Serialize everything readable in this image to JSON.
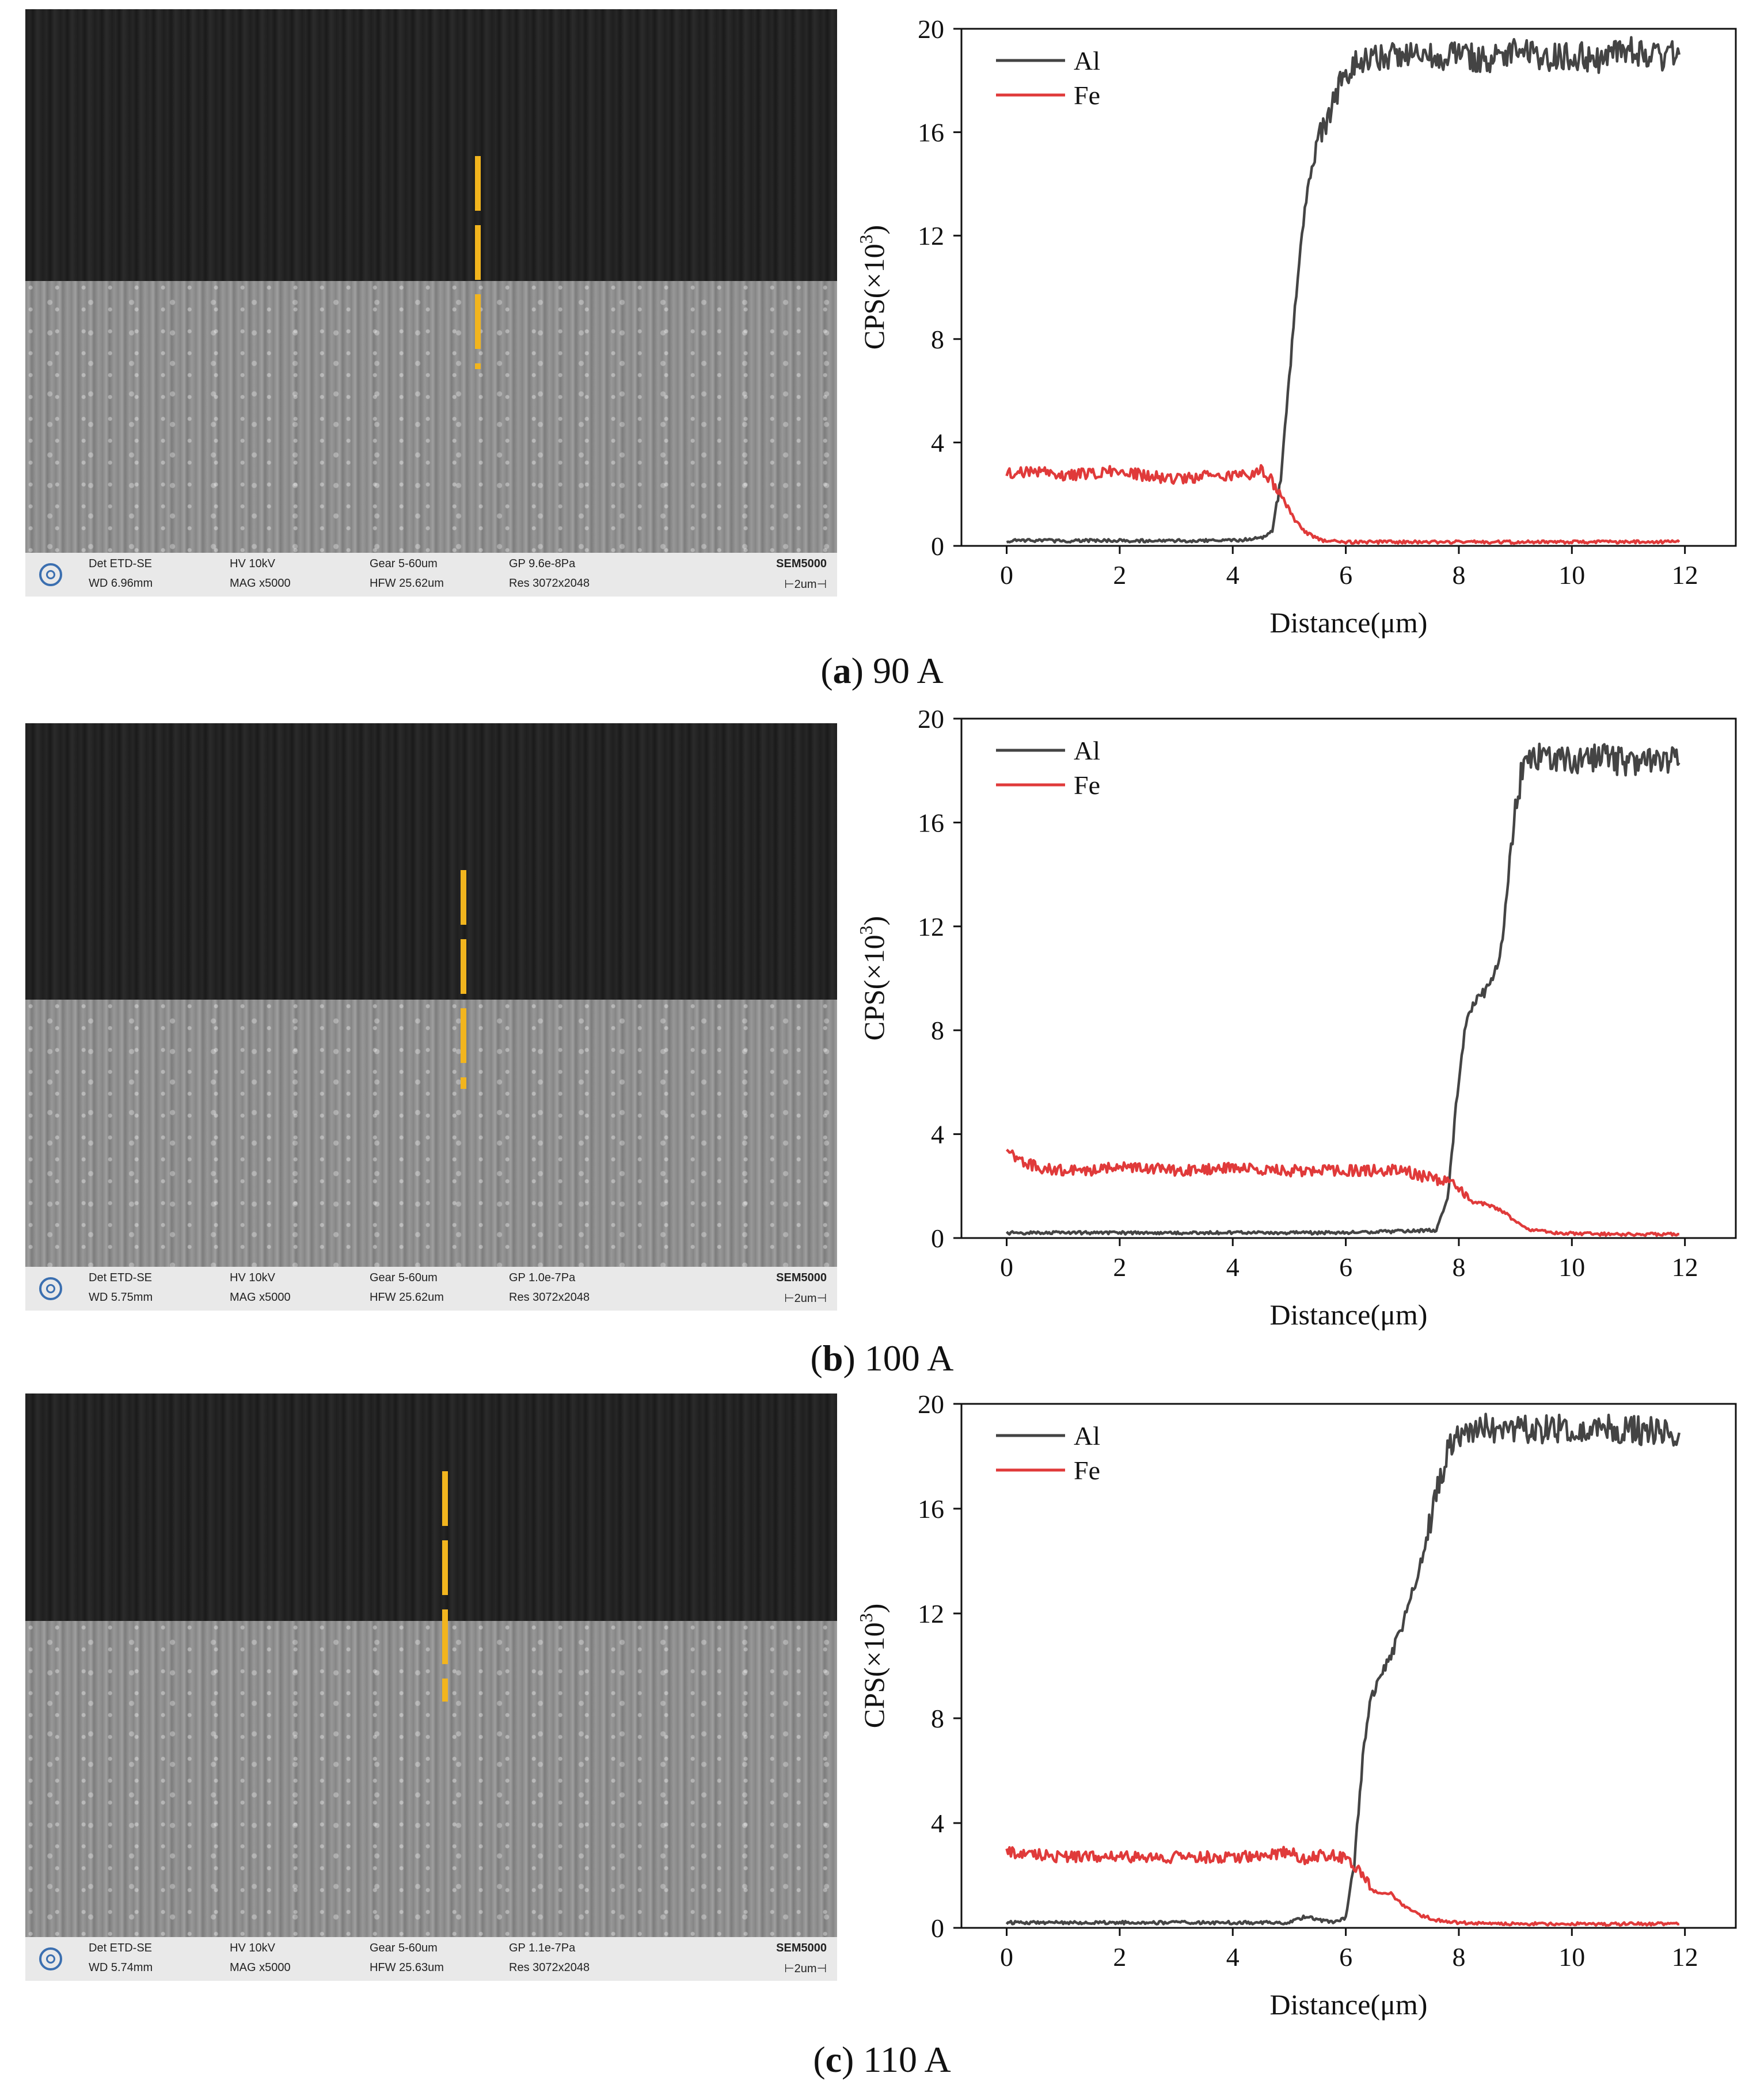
{
  "figure": {
    "axis_ylabel_main": "CPS(×10",
    "axis_ylabel_sup": "3",
    "axis_ylabel_end": ")",
    "axis_xlabel": "Distance(μm)"
  },
  "panels": [
    {
      "caption_letter": "a",
      "caption_text": ") 90 A",
      "caption_open": "(",
      "sem": {
        "det": "Det ETD-SE",
        "hv": "HV 10kV",
        "gear": "Gear 5-60um",
        "gp": "GP 9.6e-8Pa",
        "brand": "SEM5000",
        "wd": "WD 6.96mm",
        "mag": "MAG x5000",
        "hfw": "HFW 25.62um",
        "res": "Res 3072x2048",
        "scale": "⊢2um⊣"
      }
    },
    {
      "caption_letter": "b",
      "caption_text": ") 100 A",
      "caption_open": "(",
      "sem": {
        "det": "Det ETD-SE",
        "hv": "HV 10kV",
        "gear": "Gear 5-60um",
        "gp": "GP 1.0e-7Pa",
        "brand": "SEM5000",
        "wd": "WD 5.75mm",
        "mag": "MAG x5000",
        "hfw": "HFW 25.62um",
        "res": "Res 3072x2048",
        "scale": "⊢2um⊣"
      }
    },
    {
      "caption_letter": "c",
      "caption_text": ") 110 A",
      "caption_open": "(",
      "sem": {
        "det": "Det ETD-SE",
        "hv": "HV 10kV",
        "gear": "Gear 5-60um",
        "gp": "GP 1.1e-7Pa",
        "brand": "SEM5000",
        "wd": "WD 5.74mm",
        "mag": "MAG x5000",
        "hfw": "HFW 25.63um",
        "res": "Res 3072x2048",
        "scale": "⊢2um⊣"
      }
    }
  ],
  "chart_data": [
    {
      "type": "line",
      "title": "90 A",
      "xlabel": "Distance(μm)",
      "ylabel": "CPS(×10³)",
      "xlim": [
        -0.8,
        12.9
      ],
      "ylim": [
        0,
        20
      ],
      "xticks": [
        0,
        2,
        4,
        6,
        8,
        10,
        12
      ],
      "yticks": [
        0,
        4,
        8,
        12,
        16,
        20
      ],
      "series": [
        {
          "name": "Al",
          "color": "#444444",
          "x": [
            0,
            2,
            4,
            4.5,
            4.7,
            4.85,
            5.0,
            5.15,
            5.3,
            5.5,
            5.7,
            5.9,
            6.1,
            6.5,
            7,
            7.5,
            8,
            8.5,
            9,
            9.5,
            10,
            10.5,
            11,
            11.5,
            11.9
          ],
          "y": [
            0.2,
            0.2,
            0.2,
            0.3,
            0.6,
            2.5,
            6.5,
            10.5,
            13.5,
            15.5,
            16.8,
            17.8,
            18.6,
            18.9,
            19.1,
            18.9,
            19.0,
            18.8,
            19.1,
            18.9,
            19.0,
            18.8,
            19.2,
            18.9,
            19.0
          ]
        },
        {
          "name": "Fe",
          "color": "#e03a3a",
          "x": [
            0,
            0.5,
            1,
            1.5,
            2,
            2.5,
            3,
            3.5,
            4,
            4.3,
            4.5,
            4.7,
            4.9,
            5.1,
            5.3,
            5.6,
            6,
            7,
            8,
            9,
            10,
            11,
            11.9
          ],
          "y": [
            2.8,
            2.9,
            2.7,
            2.8,
            2.9,
            2.7,
            2.6,
            2.7,
            2.7,
            2.8,
            2.9,
            2.5,
            1.8,
            1.0,
            0.5,
            0.2,
            0.15,
            0.15,
            0.15,
            0.15,
            0.15,
            0.15,
            0.15
          ]
        }
      ]
    },
    {
      "type": "line",
      "title": "100 A",
      "xlabel": "Distance(μm)",
      "ylabel": "CPS(×10³)",
      "xlim": [
        -0.8,
        12.9
      ],
      "ylim": [
        0,
        20
      ],
      "xticks": [
        0,
        2,
        4,
        6,
        8,
        10,
        12
      ],
      "yticks": [
        0,
        4,
        8,
        12,
        16,
        20
      ],
      "series": [
        {
          "name": "Al",
          "color": "#444444",
          "x": [
            0,
            2,
            4,
            6,
            7.6,
            7.8,
            7.95,
            8.1,
            8.25,
            8.4,
            8.55,
            8.7,
            8.8,
            8.9,
            9.0,
            9.1,
            9.25,
            9.5,
            10,
            10.5,
            11,
            11.5,
            11.9
          ],
          "y": [
            0.2,
            0.2,
            0.2,
            0.2,
            0.3,
            1.5,
            5.0,
            8.0,
            9.1,
            9.3,
            9.8,
            10.5,
            12.0,
            14.5,
            16.5,
            17.8,
            18.4,
            18.6,
            18.4,
            18.5,
            18.3,
            18.5,
            18.3
          ]
        },
        {
          "name": "Fe",
          "color": "#e03a3a",
          "x": [
            0,
            0.3,
            0.8,
            1.5,
            2,
            3,
            4,
            5,
            6,
            7,
            7.5,
            7.8,
            8.0,
            8.2,
            8.5,
            8.8,
            9.0,
            9.3,
            9.7,
            10.5,
            11.2,
            11.9
          ],
          "y": [
            3.3,
            2.9,
            2.6,
            2.6,
            2.8,
            2.6,
            2.7,
            2.6,
            2.6,
            2.6,
            2.3,
            2.2,
            1.9,
            1.4,
            1.3,
            1.0,
            0.6,
            0.3,
            0.2,
            0.15,
            0.15,
            0.15
          ]
        }
      ]
    },
    {
      "type": "line",
      "title": "110 A",
      "xlabel": "Distance(μm)",
      "ylabel": "CPS(×10³)",
      "xlim": [
        -0.8,
        12.9
      ],
      "ylim": [
        0,
        20
      ],
      "xticks": [
        0,
        2,
        4,
        6,
        8,
        10,
        12
      ],
      "yticks": [
        0,
        4,
        8,
        12,
        16,
        20
      ],
      "series": [
        {
          "name": "Al",
          "color": "#444444",
          "x": [
            0,
            2,
            4,
            5.0,
            5.3,
            5.5,
            5.8,
            6.0,
            6.15,
            6.3,
            6.45,
            6.6,
            6.8,
            7.0,
            7.2,
            7.4,
            7.6,
            7.8,
            8.0,
            8.5,
            9,
            10,
            11,
            11.9
          ],
          "y": [
            0.2,
            0.2,
            0.2,
            0.2,
            0.45,
            0.3,
            0.2,
            0.4,
            2.5,
            6.5,
            8.8,
            9.5,
            10.4,
            11.5,
            13.0,
            14.5,
            16.5,
            18.2,
            18.9,
            19.1,
            19.0,
            19.1,
            19.0,
            18.9
          ]
        },
        {
          "name": "Fe",
          "color": "#e03a3a",
          "x": [
            0,
            0.5,
            1,
            2,
            3,
            4,
            4.7,
            5.0,
            5.3,
            5.6,
            5.9,
            6.1,
            6.3,
            6.5,
            6.8,
            7.0,
            7.3,
            7.6,
            8.0,
            9,
            10,
            11,
            11.9
          ],
          "y": [
            2.9,
            2.8,
            2.7,
            2.7,
            2.7,
            2.7,
            2.8,
            2.9,
            2.6,
            2.8,
            2.7,
            2.5,
            2.0,
            1.4,
            1.3,
            0.9,
            0.5,
            0.3,
            0.2,
            0.15,
            0.15,
            0.15,
            0.15
          ]
        }
      ]
    }
  ]
}
